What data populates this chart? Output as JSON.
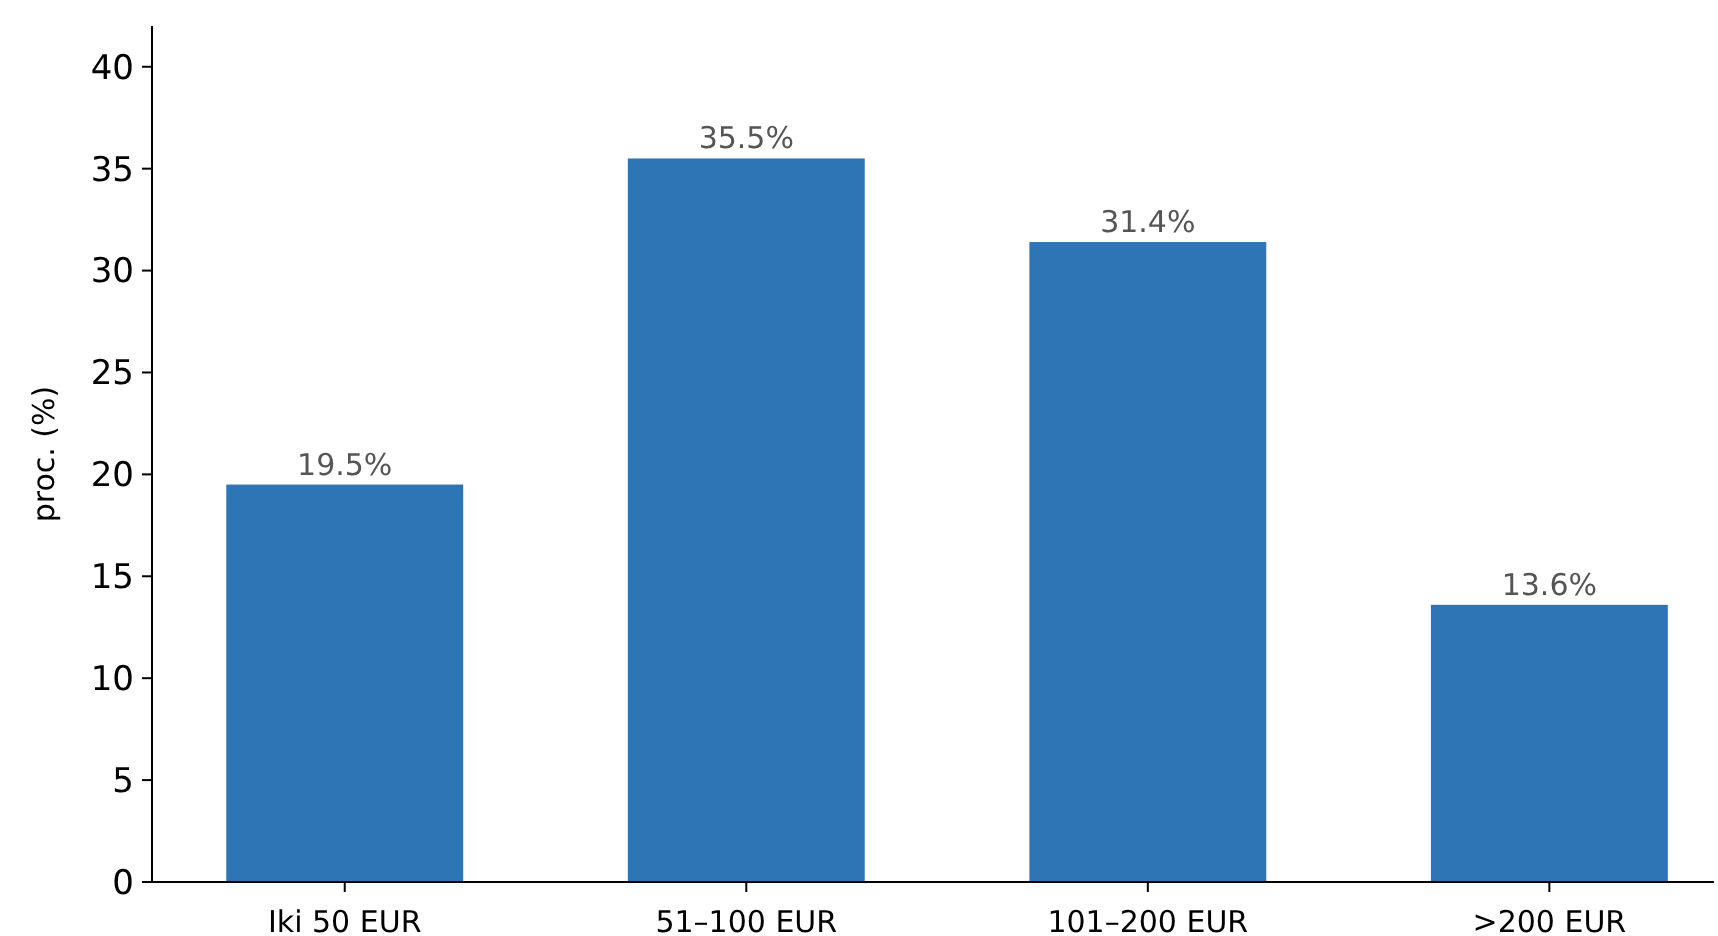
{
  "chart_data": {
    "type": "bar",
    "ylabel": "proc. (%)",
    "categories": [
      "Iki 50 EUR",
      "51–100 EUR",
      "101–200 EUR",
      ">200 EUR"
    ],
    "values": [
      19.5,
      35.5,
      31.4,
      13.6
    ],
    "color": "#2e75b6",
    "value_labels": [
      "19.5%",
      "35.5%",
      "31.4%",
      "13.6%"
    ],
    "ylim": [
      0,
      42
    ],
    "yticks": [
      0,
      5,
      10,
      15,
      20,
      25,
      30,
      35,
      40
    ],
    "grid": false
  }
}
